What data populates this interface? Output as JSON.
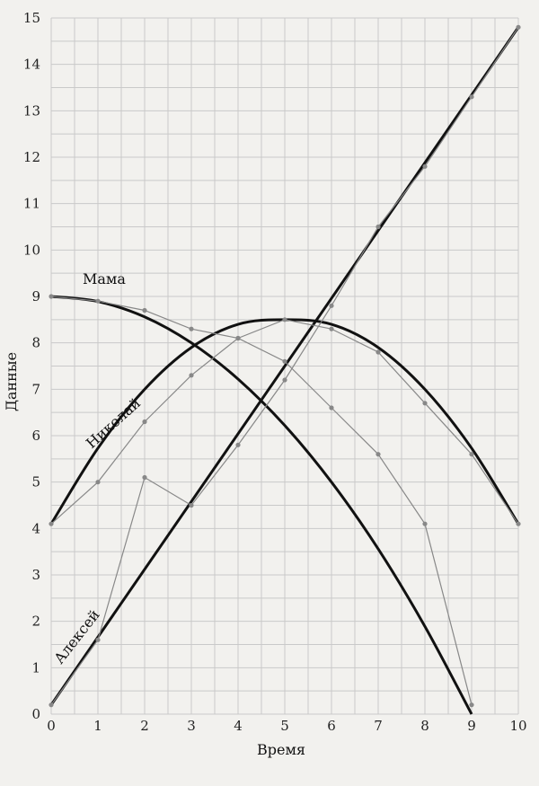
{
  "chart_data": {
    "type": "line",
    "xlabel": "Время",
    "ylabel": "Данные",
    "xlim": [
      0,
      10
    ],
    "ylim": [
      0,
      15
    ],
    "x_ticks": [
      0,
      1,
      2,
      3,
      4,
      5,
      6,
      7,
      8,
      9,
      10
    ],
    "y_ticks": [
      0,
      1,
      2,
      3,
      4,
      5,
      6,
      7,
      8,
      9,
      10,
      11,
      12,
      13,
      14,
      15
    ],
    "grid": true,
    "colors": {
      "background": "#f2f1ee",
      "grid": "#c9c9c9",
      "fit": "#111111",
      "data": "#888888"
    },
    "series": [
      {
        "name": "Мама",
        "x": [
          0,
          1,
          2,
          3,
          4,
          5,
          6,
          7,
          8,
          9
        ],
        "values": [
          9.0,
          8.9,
          8.7,
          8.3,
          8.1,
          7.6,
          6.6,
          5.6,
          4.1,
          0.2
        ],
        "fit": [
          [
            0,
            9.0
          ],
          [
            1,
            8.89
          ],
          [
            2,
            8.56
          ],
          [
            3,
            8.0
          ],
          [
            4,
            7.22
          ],
          [
            5,
            6.22
          ],
          [
            6,
            5.0
          ],
          [
            7,
            3.56
          ],
          [
            8,
            1.89
          ],
          [
            9,
            0.0
          ]
        ]
      },
      {
        "name": "Николай",
        "x": [
          0,
          1,
          2,
          3,
          4,
          5,
          6,
          7,
          8,
          9,
          10
        ],
        "values": [
          4.1,
          5.0,
          6.3,
          7.3,
          8.1,
          8.5,
          8.3,
          7.8,
          6.7,
          5.6,
          4.1
        ],
        "fit": [
          [
            0,
            4.1
          ],
          [
            1,
            5.73
          ],
          [
            2,
            7.0
          ],
          [
            3,
            7.9
          ],
          [
            4,
            8.4
          ],
          [
            5,
            8.5
          ],
          [
            6,
            8.4
          ],
          [
            7,
            7.9
          ],
          [
            8,
            7.0
          ],
          [
            9,
            5.73
          ],
          [
            10,
            4.1
          ]
        ]
      },
      {
        "name": "Алексей",
        "x": [
          0,
          1,
          2,
          3,
          4,
          5,
          6,
          7,
          8,
          9,
          10
        ],
        "values": [
          0.2,
          1.6,
          5.1,
          4.5,
          5.8,
          7.2,
          8.8,
          10.5,
          11.8,
          13.3,
          14.8
        ],
        "fit": [
          [
            0,
            0.2
          ],
          [
            10,
            14.8
          ]
        ]
      }
    ]
  }
}
